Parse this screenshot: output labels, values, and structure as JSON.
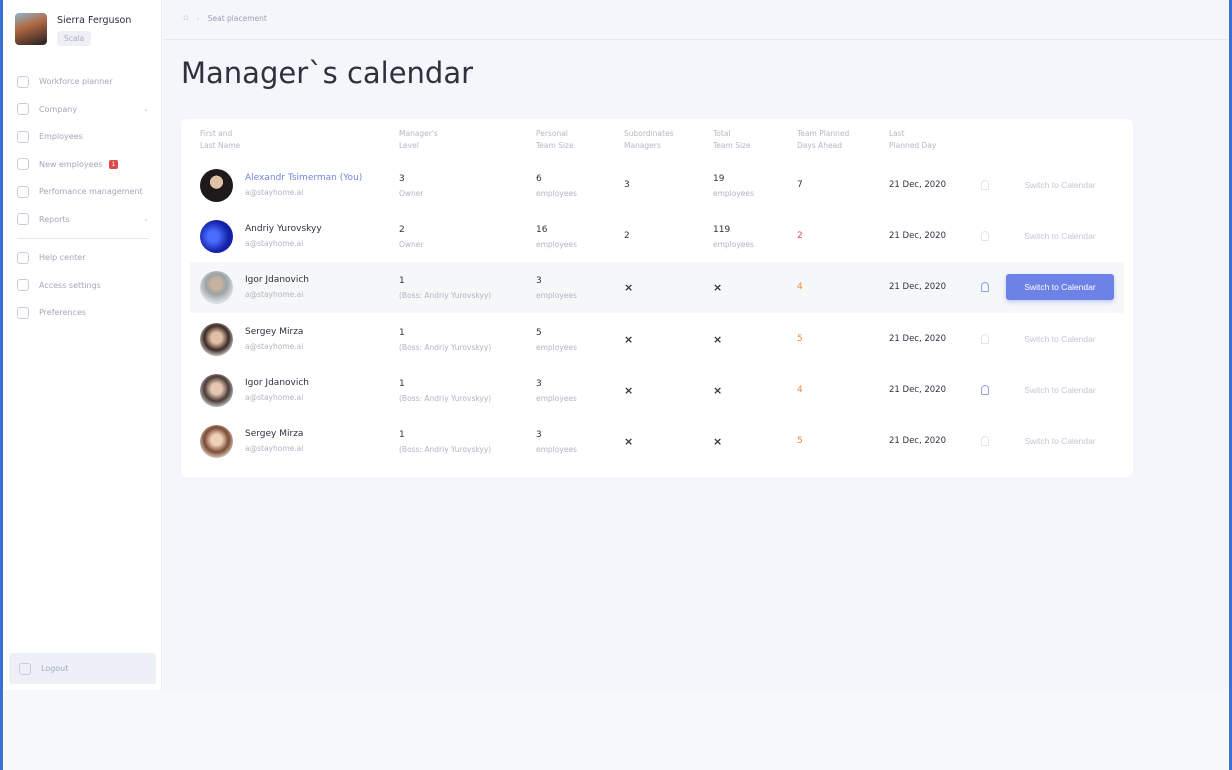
{
  "user": {
    "name": "Sierra Ferguson",
    "badge": "Scala"
  },
  "nav": [
    {
      "label": "Workforce planner"
    },
    {
      "label": "Company",
      "chevron": true
    },
    {
      "label": "Employees"
    },
    {
      "label": "New employees",
      "badge": "1"
    },
    {
      "label": "Perfomance management"
    },
    {
      "label": "Reports",
      "chevron": true
    }
  ],
  "nav2": [
    {
      "label": "Help center"
    },
    {
      "label": "Access settings"
    },
    {
      "label": "Preferences"
    }
  ],
  "logout": "Logout",
  "breadcrumb": {
    "current": "Seat placement"
  },
  "title": "Manager`s calendar",
  "columns": [
    "First and\nLast Name",
    "Manager's\nLevel",
    "Personal\nTeam Size",
    "Subordinates\nManagers",
    "Total\nTeam Size",
    "Team Planned\nDays Ahead",
    "Last\nPlanned Day"
  ],
  "colors": {
    "accent": "#6d82e6",
    "danger": "#e24b4b",
    "warning": "#f08a3c"
  },
  "rows": [
    {
      "name": "Alexandr Tsimerman (You)",
      "email": "a@stayhome.ai",
      "level": "3",
      "level_sub": "Owner",
      "personal": "6",
      "personal_sub": "employees",
      "subs": "3",
      "total": "19",
      "total_sub": "employees",
      "days": "7",
      "days_color": "#2e323d",
      "last": "21 Dec, 2020",
      "action": "Switch to Calendar",
      "active": false,
      "self": true
    },
    {
      "name": "Andriy Yurovskyy",
      "email": "a@stayhome.ai",
      "level": "2",
      "level_sub": "Owner",
      "personal": "16",
      "personal_sub": "employees",
      "subs": "2",
      "total": "119",
      "total_sub": "employees",
      "days": "2",
      "days_color": "#e24b4b",
      "last": "21 Dec, 2020",
      "action": "Switch to Calendar",
      "active": false
    },
    {
      "name": "Igor Jdanovich",
      "email": "a@stayhome.ai",
      "level": "1",
      "level_sub": "(Boss: Andriy Yurovskyy)",
      "personal": "3",
      "personal_sub": "employees",
      "subs": "×",
      "total": "×",
      "total_sub": "",
      "days": "4",
      "days_color": "#f08a3c",
      "last": "21 Dec, 2020",
      "action": "Switch to Calendar",
      "active": true,
      "bell": true
    },
    {
      "name": "Sergey Mirza",
      "email": "a@stayhome.ai",
      "level": "1",
      "level_sub": "(Boss: Andriy Yurovskyy)",
      "personal": "5",
      "personal_sub": "employees",
      "subs": "×",
      "total": "×",
      "total_sub": "",
      "days": "5",
      "days_color": "#f08a3c",
      "last": "21 Dec, 2020",
      "action": "Switch to Calendar",
      "active": false
    },
    {
      "name": "Igor Jdanovich",
      "email": "a@stayhome.ai",
      "level": "1",
      "level_sub": "(Boss: Andriy Yurovskyy)",
      "personal": "3",
      "personal_sub": "employees",
      "subs": "×",
      "total": "×",
      "total_sub": "",
      "days": "4",
      "days_color": "#f08a3c",
      "last": "21 Dec, 2020",
      "action": "Switch to Calendar",
      "active": false,
      "bell": true
    },
    {
      "name": "Sergey Mirza",
      "email": "a@stayhome.ai",
      "level": "1",
      "level_sub": "(Boss: Andriy Yurovskyy)",
      "personal": "3",
      "personal_sub": "employees",
      "subs": "×",
      "total": "×",
      "total_sub": "",
      "days": "5",
      "days_color": "#f08a3c",
      "last": "21 Dec, 2020",
      "action": "Switch to Calendar",
      "active": false
    }
  ]
}
